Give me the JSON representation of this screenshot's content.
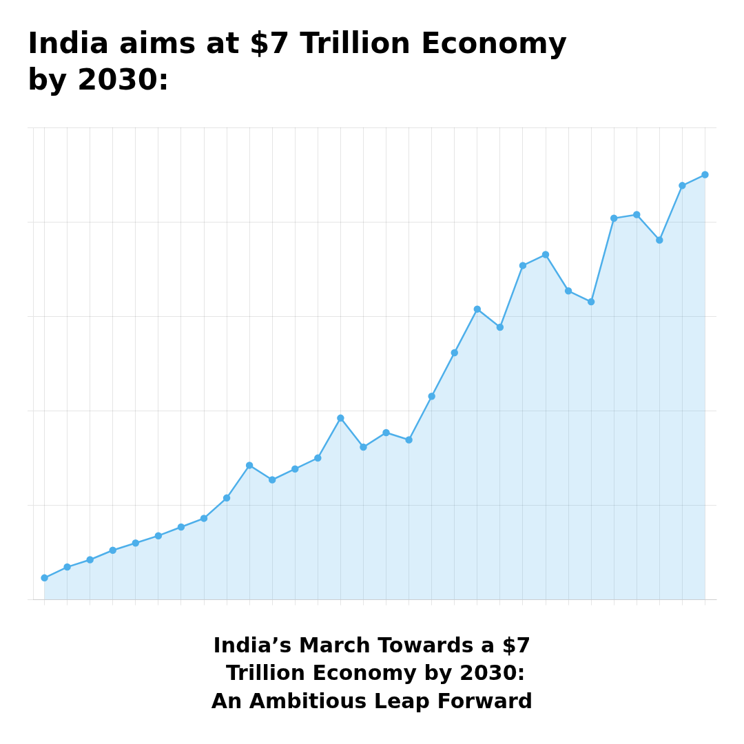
{
  "chart_data": {
    "type": "area",
    "title": "India aims at $7 Trillion Economy\nby 2030:",
    "subtitle": "India’s March Towards a $7\n Trillion Economy by 2030:\nAn Ambitious Leap Forward",
    "categories": [
      null,
      null,
      null,
      null,
      null,
      null,
      null,
      null,
      null,
      null,
      null,
      null,
      null,
      null,
      null,
      null,
      null,
      null,
      null,
      null,
      null,
      null,
      null,
      null,
      null,
      null,
      null,
      null,
      null,
      null
    ],
    "values": [
      1.0,
      1.15,
      1.25,
      1.38,
      1.48,
      1.58,
      1.7,
      1.82,
      2.1,
      2.55,
      2.35,
      2.5,
      2.65,
      3.2,
      2.8,
      3.0,
      2.9,
      3.5,
      4.1,
      4.7,
      4.45,
      5.3,
      5.45,
      4.95,
      4.8,
      5.95,
      6.0,
      5.65,
      6.4,
      6.55
    ],
    "color": "#4DAFEA",
    "marker": "circle",
    "ylim": [
      0.7,
      7.2
    ],
    "yticks": [
      0.7,
      2.0,
      3.3,
      4.6,
      5.9,
      7.2
    ],
    "grid": true,
    "tick_labels": false
  }
}
